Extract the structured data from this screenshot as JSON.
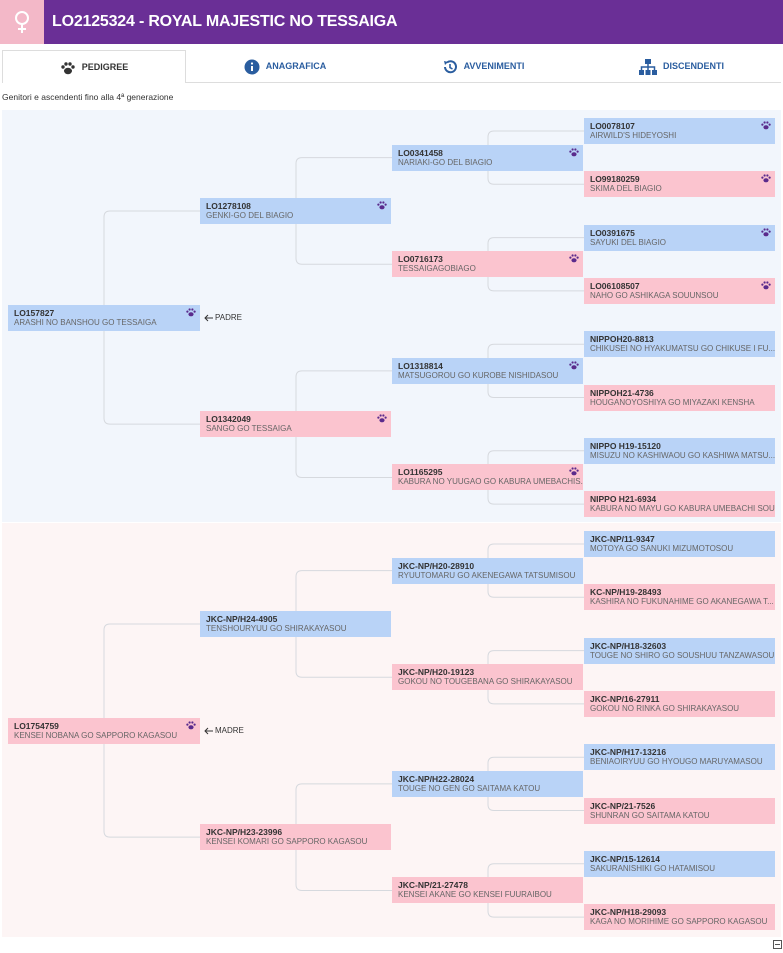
{
  "header": {
    "title": "LO2125324 - ROYAL MAJESTIC NO TESSAIGA"
  },
  "tabs": [
    "PEDIGREE",
    "ANAGRAFICA",
    "AVVENIMENTI",
    "DISCENDENTI"
  ],
  "subtitle": "Genitori e ascendenti fino alla 4ª generazione",
  "pedigree": {
    "sire": {
      "id": "LO157827",
      "name": "ARASHI NO BANSHOU GO TESSAIGA",
      "paw": true,
      "label": "PADRE",
      "sire": {
        "id": "LO1278108",
        "name": "GENKI-GO DEL BIAGIO",
        "paw": true,
        "sire": {
          "id": "LO0341458",
          "name": "NARIAKI-GO DEL BIAGIO",
          "paw": true,
          "sire": {
            "id": "LO0078107",
            "name": "AIRWILD'S HIDEYOSHI",
            "paw": true
          },
          "dam": {
            "id": "LO99180259",
            "name": "SKIMA DEL BIAGIO",
            "paw": true
          }
        },
        "dam": {
          "id": "LO0716173",
          "name": "TESSAIGAGOBIAGO",
          "paw": true,
          "sire": {
            "id": "LO0391675",
            "name": "SAYUKI DEL BIAGIO",
            "paw": true
          },
          "dam": {
            "id": "LO06108507",
            "name": "NAHO GO ASHIKAGA SOUUNSOU",
            "paw": true
          }
        }
      },
      "dam": {
        "id": "LO1342049",
        "name": "SANGO GO TESSAIGA",
        "paw": true,
        "sire": {
          "id": "LO1318814",
          "name": "MATSUGOROU GO KUROBE NISHIDASOU",
          "paw": true,
          "sire": {
            "id": "NIPPOH20-8813",
            "name": "CHIKUSEI NO HYAKUMATSU GO CHIKUSE I FU..."
          },
          "dam": {
            "id": "NIPPOH21-4736",
            "name": "HOUGANOYOSHIYA GO MIYAZAKI KENSHA"
          }
        },
        "dam": {
          "id": "LO1165295",
          "name": "KABURA NO YUUGAO GO KABURA UMEBACHIS...",
          "paw": true,
          "sire": {
            "id": "NIPPO H19-15120",
            "name": "MISUZU NO KASHIWAOU GO KASHIWA MATSU..."
          },
          "dam": {
            "id": "NIPPO H21-6934",
            "name": "KABURA NO MAYU GO KABURA UMEBACHI SOU"
          }
        }
      }
    },
    "dam": {
      "id": "LO1754759",
      "name": "KENSEI NOBANA GO SAPPORO KAGASOU",
      "paw": true,
      "label": "MADRE",
      "sire": {
        "id": "JKC-NP/H24-4905",
        "name": "TENSHOURYUU GO SHIRAKAYASOU",
        "sire": {
          "id": "JKC-NP/H20-28910",
          "name": "RYUUTOMARU GO AKENEGAWA TATSUMISOU",
          "sire": {
            "id": "JKC-NP/11-9347",
            "name": "MOTOYA GO SANUKI MIZUMOTOSOU"
          },
          "dam": {
            "id": "KC-NP/H19-28493",
            "name": "KASHIRA NO FUKUNAHIME GO AKANEGAWA T..."
          }
        },
        "dam": {
          "id": "JKC-NP/H20-19123",
          "name": "GOKOU NO TOUGEBANA GO SHIRAKAYASOU",
          "sire": {
            "id": "JKC-NP/H18-32603",
            "name": "TOUGE NO SHIRO GO SOUSHUU TANZAWASOU"
          },
          "dam": {
            "id": "JKC-NP/16-27911",
            "name": "GOKOU NO RINKA GO SHIRAKAYASOU"
          }
        }
      },
      "dam": {
        "id": "JKC-NP/H23-23996",
        "name": "KENSEI KOMARI GO SAPPORO KAGASOU",
        "sire": {
          "id": "JKC-NP/H22-28024",
          "name": "TOUGE NO GEN GO SAITAMA KATOU",
          "sire": {
            "id": "JKC-NP/H17-13216",
            "name": "BENIAOIRYUU GO HYOUGO MARUYAMASOU"
          },
          "dam": {
            "id": "JKC-NP/21-7526",
            "name": "SHUNRAN GO SAITAMA KATOU"
          }
        },
        "dam": {
          "id": "JKC-NP/21-27478",
          "name": "KENSEI AKANE GO KENSEI FUURAIBOU",
          "sire": {
            "id": "JKC-NP/15-12614",
            "name": "SAKURANISHIKI GO HATAMISOU"
          },
          "dam": {
            "id": "JKC-NP/H18-29093",
            "name": "KAGA NO MORIHIME GO SAPPORO KAGASOU"
          }
        }
      }
    }
  }
}
